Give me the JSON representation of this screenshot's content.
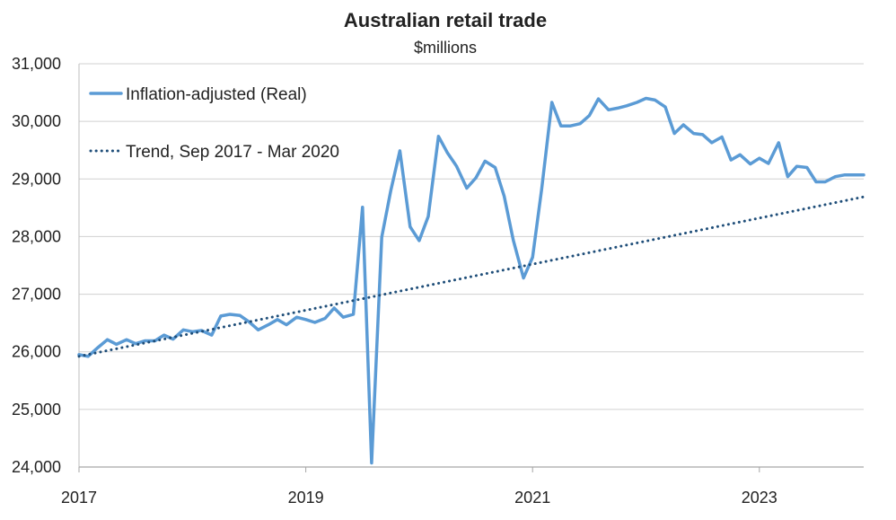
{
  "chart_data": {
    "type": "line",
    "title": "Australian retail trade",
    "subtitle": "$millions",
    "xlabel": "",
    "ylabel": "",
    "xlim": [
      2017.0,
      2023.92
    ],
    "ylim": [
      24000,
      31000
    ],
    "x_ticks": [
      "2017",
      "2019",
      "2021",
      "2023"
    ],
    "y_ticks": [
      "24,000",
      "25,000",
      "26,000",
      "27,000",
      "28,000",
      "29,000",
      "30,000",
      "31,000"
    ],
    "grid": "horizontal",
    "legend_position": "top-left",
    "series": [
      {
        "name": "Inflation-adjusted (Real)",
        "color": "#5b9bd5",
        "style": "solid",
        "x": [
          2017.0,
          2017.08,
          2017.17,
          2017.25,
          2017.33,
          2017.42,
          2017.5,
          2017.58,
          2017.67,
          2017.75,
          2017.83,
          2017.92,
          2018.0,
          2018.08,
          2018.17,
          2018.25,
          2018.33,
          2018.42,
          2018.5,
          2018.58,
          2018.67,
          2018.75,
          2018.83,
          2018.92,
          2019.0,
          2019.08,
          2019.17,
          2019.25,
          2019.33,
          2019.42,
          2019.5,
          2019.58,
          2019.67,
          2019.75,
          2019.83,
          2019.92,
          2020.0,
          2020.08,
          2020.17,
          2020.25,
          2020.33,
          2020.42,
          2020.5,
          2020.58,
          2020.67,
          2020.75,
          2020.83,
          2020.92,
          2021.0,
          2021.08,
          2021.17,
          2021.25,
          2021.33,
          2021.42,
          2021.5,
          2021.58,
          2021.67,
          2021.75,
          2021.83,
          2021.92,
          2022.0,
          2022.08,
          2022.17,
          2022.25,
          2022.33,
          2022.42,
          2022.5,
          2022.58,
          2022.67,
          2022.75,
          2022.83,
          2022.92,
          2023.0,
          2023.08,
          2023.17,
          2023.25,
          2023.33,
          2023.42,
          2023.5,
          2023.58,
          2023.67,
          2023.75,
          2023.83,
          2023.92
        ],
        "y": [
          25950,
          25920,
          26080,
          26210,
          26130,
          26210,
          26140,
          26190,
          26190,
          26290,
          26220,
          26380,
          26350,
          26370,
          26290,
          26620,
          26650,
          26630,
          26520,
          26380,
          26470,
          26560,
          26470,
          26600,
          26560,
          26510,
          26580,
          26760,
          26600,
          26650,
          28510,
          24070,
          27990,
          28800,
          29490,
          28170,
          27930,
          28350,
          29740,
          29450,
          29220,
          28840,
          29020,
          29310,
          29200,
          28700,
          27940,
          27280,
          27640,
          28820,
          30330,
          29920,
          29920,
          29960,
          30100,
          30390,
          30200,
          30230,
          30270,
          30330,
          30400,
          30370,
          30250,
          29790,
          29940,
          29790,
          29770,
          29630,
          29730,
          29330,
          29420,
          29260,
          29360,
          29270,
          29630,
          29040,
          29220,
          29200,
          28950,
          28950,
          29040,
          29070,
          29070,
          29070
        ]
      },
      {
        "name": "Trend, Sep 2017 - Mar 2020",
        "color": "#1f4e79",
        "style": "dotted",
        "x": [
          2017.0,
          2023.92
        ],
        "y": [
          25920,
          28690
        ]
      }
    ]
  }
}
